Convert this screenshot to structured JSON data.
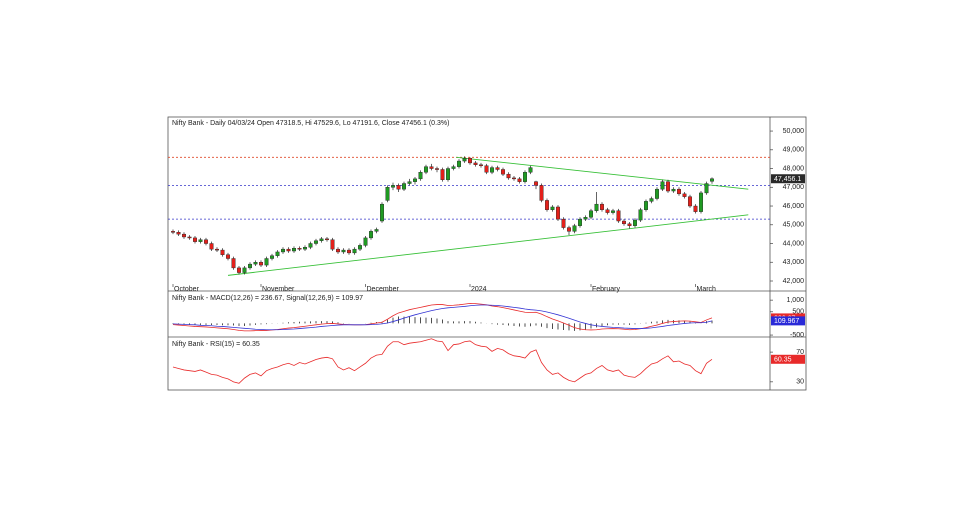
{
  "chart_data": [
    {
      "type": "candlestick",
      "title": "Nifty Bank - Daily 04/03/24 Open 47318.5, Hi 47529.6, Lo 47191.6, Close 47456.1 (0.3%)",
      "categories": [
        "October",
        null,
        null,
        null,
        null,
        null,
        null,
        null,
        null,
        null,
        null,
        null,
        null,
        null,
        null,
        null,
        "November",
        null,
        null,
        null,
        null,
        null,
        null,
        null,
        null,
        null,
        null,
        null,
        null,
        null,
        null,
        null,
        null,
        null,
        null,
        "December",
        null,
        null,
        null,
        null,
        null,
        null,
        null,
        null,
        null,
        null,
        null,
        null,
        null,
        null,
        null,
        null,
        null,
        null,
        "2024",
        null,
        null,
        null,
        null,
        null,
        null,
        null,
        null,
        null,
        null,
        null,
        null,
        null,
        null,
        null,
        null,
        null,
        null,
        null,
        null,
        null,
        "February",
        null,
        null,
        null,
        null,
        null,
        null,
        null,
        null,
        null,
        null,
        null,
        null,
        null,
        null,
        null,
        null,
        null,
        null,
        "March",
        null,
        null
      ],
      "ohlc": [
        [
          44650,
          44750,
          44500,
          44600
        ],
        [
          44600,
          44700,
          44400,
          44500
        ],
        [
          44500,
          44600,
          44250,
          44350
        ],
        [
          44350,
          44450,
          44200,
          44300
        ],
        [
          44300,
          44400,
          44000,
          44100
        ],
        [
          44100,
          44300,
          44000,
          44200
        ],
        [
          44200,
          44300,
          43900,
          44000
        ],
        [
          44000,
          44100,
          43600,
          43700
        ],
        [
          43700,
          43800,
          43550,
          43650
        ],
        [
          43650,
          43750,
          43300,
          43400
        ],
        [
          43400,
          43500,
          43100,
          43200
        ],
        [
          43200,
          43300,
          42600,
          42700
        ],
        [
          42700,
          42800,
          42350,
          42450
        ],
        [
          42450,
          42800,
          42350,
          42700
        ],
        [
          42700,
          43000,
          42600,
          42900
        ],
        [
          42900,
          43100,
          42800,
          43000
        ],
        [
          43000,
          43100,
          42750,
          42850
        ],
        [
          42850,
          43300,
          42750,
          43200
        ],
        [
          43200,
          43450,
          43100,
          43350
        ],
        [
          43350,
          43650,
          43250,
          43550
        ],
        [
          43550,
          43800,
          43450,
          43700
        ],
        [
          43700,
          43800,
          43500,
          43600
        ],
        [
          43600,
          43850,
          43500,
          43750
        ],
        [
          43750,
          43850,
          43600,
          43700
        ],
        [
          43700,
          43900,
          43600,
          43800
        ],
        [
          43800,
          44100,
          43700,
          44000
        ],
        [
          44000,
          44250,
          43900,
          44150
        ],
        [
          44150,
          44350,
          44050,
          44250
        ],
        [
          44250,
          44350,
          44100,
          44200
        ],
        [
          44200,
          44300,
          43600,
          43700
        ],
        [
          43700,
          43800,
          43450,
          43550
        ],
        [
          43550,
          43750,
          43450,
          43650
        ],
        [
          43650,
          43750,
          43400,
          43500
        ],
        [
          43500,
          43800,
          43400,
          43700
        ],
        [
          43700,
          44000,
          43600,
          43900
        ],
        [
          43900,
          44400,
          43800,
          44300
        ],
        [
          44300,
          44750,
          44200,
          44650
        ],
        [
          44650,
          44850,
          44550,
          44750
        ],
        [
          45200,
          46200,
          45100,
          46100
        ],
        [
          46300,
          47100,
          46200,
          47000
        ],
        [
          47000,
          47250,
          46850,
          47100
        ],
        [
          47100,
          47200,
          46750,
          46900
        ],
        [
          46900,
          47300,
          46800,
          47200
        ],
        [
          47200,
          47450,
          47100,
          47300
        ],
        [
          47300,
          47550,
          47150,
          47450
        ],
        [
          47450,
          47900,
          47350,
          47800
        ],
        [
          47800,
          48200,
          47700,
          48100
        ],
        [
          48100,
          48250,
          47900,
          48000
        ],
        [
          48000,
          48100,
          47800,
          47950
        ],
        [
          47950,
          48050,
          47300,
          47400
        ],
        [
          47400,
          48100,
          47300,
          48000
        ],
        [
          48000,
          48200,
          47900,
          48100
        ],
        [
          48100,
          48500,
          48000,
          48400
        ],
        [
          48400,
          48650,
          48300,
          48550
        ],
        [
          48550,
          48600,
          48200,
          48300
        ],
        [
          48300,
          48400,
          48100,
          48200
        ],
        [
          48200,
          48300,
          48050,
          48150
        ],
        [
          48150,
          48250,
          47700,
          47800
        ],
        [
          47800,
          48150,
          47700,
          48050
        ],
        [
          48050,
          48150,
          47850,
          47950
        ],
        [
          47950,
          48050,
          47600,
          47700
        ],
        [
          47700,
          47800,
          47400,
          47500
        ],
        [
          47500,
          47600,
          47350,
          47450
        ],
        [
          47450,
          47550,
          47200,
          47300
        ],
        [
          47300,
          47900,
          47200,
          47800
        ],
        [
          47800,
          48150,
          47700,
          48050
        ],
        [
          47300,
          47350,
          46900,
          47100
        ],
        [
          47100,
          47200,
          46200,
          46300
        ],
        [
          46300,
          46400,
          45700,
          45800
        ],
        [
          45800,
          46050,
          45700,
          45950
        ],
        [
          45950,
          46050,
          45200,
          45300
        ],
        [
          45300,
          45400,
          44750,
          44850
        ],
        [
          44850,
          44950,
          44450,
          44650
        ],
        [
          44650,
          45050,
          44550,
          44950
        ],
        [
          44950,
          45400,
          44850,
          45300
        ],
        [
          45300,
          45500,
          45200,
          45400
        ],
        [
          45400,
          45850,
          45300,
          45750
        ],
        [
          45750,
          46750,
          45650,
          46100
        ],
        [
          46100,
          46200,
          45700,
          45800
        ],
        [
          45800,
          45900,
          45550,
          45650
        ],
        [
          45650,
          45850,
          45550,
          45750
        ],
        [
          45750,
          45850,
          45100,
          45200
        ],
        [
          45200,
          45300,
          44950,
          45050
        ],
        [
          45050,
          45150,
          44800,
          44950
        ],
        [
          44950,
          45350,
          44850,
          45250
        ],
        [
          45250,
          45900,
          45150,
          45800
        ],
        [
          45800,
          46350,
          45700,
          46250
        ],
        [
          46250,
          46500,
          46150,
          46400
        ],
        [
          46400,
          47000,
          46300,
          46900
        ],
        [
          46900,
          47400,
          46800,
          47300
        ],
        [
          47300,
          47400,
          46700,
          46800
        ],
        [
          46800,
          47000,
          46700,
          46900
        ],
        [
          46900,
          47000,
          46550,
          46650
        ],
        [
          46650,
          46750,
          46400,
          46500
        ],
        [
          46500,
          46600,
          45900,
          46000
        ],
        [
          46000,
          46100,
          45600,
          45700
        ],
        [
          45700,
          46800,
          45600,
          46700
        ],
        [
          46700,
          47300,
          46600,
          47200
        ],
        [
          47318.5,
          47529.6,
          47191.6,
          47456.1
        ]
      ],
      "up_color": "#1f9a22",
      "down_color": "#e3201b",
      "ylim": [
        41680,
        50750
      ],
      "yticks": [
        {
          "value": 42000,
          "label": "42,000"
        },
        {
          "value": 43000,
          "label": "43,000"
        },
        {
          "value": 44000,
          "label": "44,000"
        },
        {
          "value": 45000,
          "label": "45,000"
        },
        {
          "value": 46000,
          "label": "46,000"
        },
        {
          "value": 47000,
          "label": "47,000"
        },
        {
          "value": 48000,
          "label": "48,000"
        },
        {
          "value": 49000,
          "label": "49,000"
        },
        {
          "value": 50000,
          "label": "50,000"
        }
      ],
      "reference_lines": [
        {
          "value": 48600,
          "color": "#e04a2a"
        },
        {
          "value": 47100,
          "color": "#3535c8"
        },
        {
          "value": 45300,
          "color": "#3535c8"
        }
      ],
      "trendlines": [
        {
          "color": "#38c038",
          "x": [
            51.5,
            104.6
          ],
          "values": [
            48600,
            46900
          ]
        },
        {
          "color": "#38c038",
          "x": [
            10,
            104.6
          ],
          "values": [
            42300,
            45530
          ]
        }
      ],
      "last_price": {
        "value": 47456.1,
        "label": "47,456.1",
        "color": "#2a2a2a"
      }
    },
    {
      "type": "macd",
      "title": "Nifty Bank - MACD(12,26) = 236.67, Signal(12,26,9) = 109.97",
      "series": [
        {
          "color": "#e82a2a",
          "values": [
            -50,
            -70,
            -90,
            -110,
            -130,
            -140,
            -150,
            -170,
            -190,
            -210,
            -230,
            -260,
            -300,
            -320,
            -320,
            -310,
            -300,
            -300,
            -280,
            -260,
            -230,
            -200,
            -180,
            -150,
            -120,
            -90,
            -60,
            -30,
            -10,
            0,
            -20,
            -40,
            -50,
            -60,
            -60,
            -50,
            -20,
            20,
            50,
            180,
            330,
            450,
            520,
            590,
            640,
            690,
            740,
            790,
            810,
            810,
            770,
            780,
            800,
            830,
            860,
            850,
            830,
            800,
            750,
            720,
            680,
            630,
            580,
            530,
            480,
            470,
            480,
            400,
            290,
            190,
            110,
            20,
            -80,
            -180,
            -240,
            -270,
            -280,
            -270,
            -240,
            -230,
            -220,
            -230,
            -250,
            -270,
            -260,
            -230,
            -180,
            -120,
            -70,
            0,
            60,
            80,
            100,
            110,
            100,
            70,
            40,
            150,
            236.67
          ]
        },
        {
          "color": "#3434d4",
          "values": [
            -20,
            -30,
            -40,
            -50,
            -60,
            -80,
            -90,
            -100,
            -120,
            -130,
            -150,
            -170,
            -190,
            -210,
            -230,
            -250,
            -260,
            -270,
            -270,
            -270,
            -260,
            -250,
            -240,
            -220,
            -200,
            -180,
            -160,
            -130,
            -110,
            -90,
            -70,
            -60,
            -60,
            -60,
            -60,
            -60,
            -50,
            -40,
            -20,
            20,
            80,
            150,
            230,
            300,
            370,
            430,
            490,
            550,
            600,
            640,
            670,
            690,
            710,
            730,
            760,
            780,
            790,
            790,
            780,
            770,
            750,
            720,
            690,
            660,
            620,
            590,
            570,
            540,
            490,
            430,
            370,
            300,
            220,
            140,
            60,
            0,
            -60,
            -100,
            -130,
            -150,
            -170,
            -180,
            -200,
            -210,
            -220,
            -220,
            -210,
            -190,
            -160,
            -130,
            -90,
            -60,
            -30,
            0,
            20,
            30,
            30,
            50,
            109.967
          ]
        }
      ],
      "histogram": [
        -30,
        -40,
        -50,
        -60,
        -70,
        -60,
        -60,
        -70,
        -70,
        -80,
        -80,
        -90,
        -110,
        -110,
        -90,
        -60,
        -40,
        -30,
        -10,
        10,
        30,
        50,
        60,
        70,
        80,
        90,
        100,
        100,
        100,
        90,
        50,
        20,
        10,
        0,
        0,
        10,
        30,
        60,
        70,
        160,
        250,
        300,
        290,
        290,
        270,
        260,
        250,
        240,
        210,
        170,
        100,
        90,
        90,
        100,
        100,
        70,
        40,
        10,
        -30,
        -50,
        -70,
        -90,
        -110,
        -130,
        -140,
        -120,
        -90,
        -140,
        -200,
        -240,
        -260,
        -280,
        -300,
        -320,
        -300,
        -270,
        -220,
        -170,
        -110,
        -80,
        -50,
        -50,
        -50,
        -60,
        -40,
        -10,
        30,
        70,
        90,
        130,
        150,
        140,
        130,
        110,
        80,
        40,
        10,
        100,
        126.7
      ],
      "histogram_color": "#222222",
      "ylim": [
        -540,
        1350
      ],
      "yticks": [
        {
          "value": 1000,
          "label": "1,000"
        },
        500,
        -500
      ],
      "last_labels": [
        {
          "value": 236.67,
          "label": "236.67",
          "color": "#e82a2a"
        },
        {
          "value": 109.967,
          "label": "109.967",
          "color": "#2a2ad8"
        }
      ]
    },
    {
      "type": "line",
      "title": "Nifty Bank - RSI(15) = 60.35",
      "series": [
        {
          "color": "#e82a2a",
          "values": [
            50,
            48,
            46,
            45,
            44,
            46,
            43,
            40,
            39,
            36,
            34,
            30,
            28,
            35,
            40,
            42,
            38,
            45,
            48,
            50,
            53,
            55,
            52,
            56,
            54,
            57,
            60,
            62,
            63,
            61,
            50,
            46,
            49,
            45,
            50,
            55,
            62,
            66,
            67,
            78,
            84,
            84,
            80,
            82,
            83,
            84,
            86,
            88,
            85,
            84,
            72,
            80,
            81,
            84,
            85,
            80,
            78,
            77,
            71,
            75,
            73,
            68,
            65,
            64,
            62,
            70,
            73,
            56,
            46,
            40,
            42,
            36,
            32,
            30,
            35,
            40,
            42,
            48,
            52,
            46,
            44,
            46,
            39,
            37,
            36,
            41,
            48,
            54,
            56,
            61,
            65,
            57,
            58,
            54,
            52,
            45,
            41,
            55,
            60.35
          ]
        }
      ],
      "ylim": [
        19,
        89
      ],
      "yticks": [
        70,
        30
      ],
      "last_labels": [
        {
          "value": 60.35,
          "label": "60.35",
          "color": "#e82a2a"
        }
      ]
    }
  ]
}
